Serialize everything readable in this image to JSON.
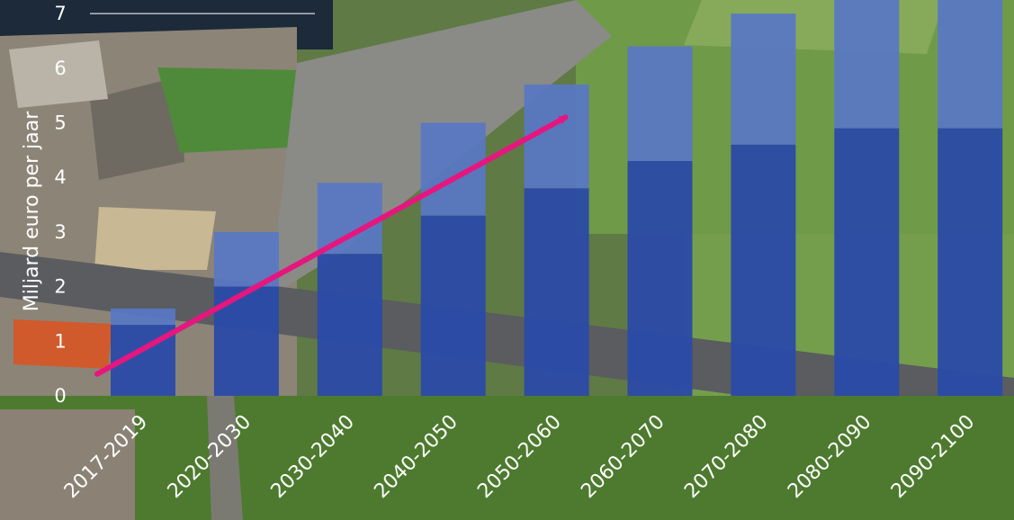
{
  "chart_data": {
    "type": "bar",
    "ylabel": "Miljard euro per jaar",
    "ylim": [
      0,
      7
    ],
    "yticks": [
      0,
      1,
      2,
      3,
      4,
      5,
      6,
      7
    ],
    "categories": [
      "2017-2019",
      "2020-2030",
      "2030-2040",
      "2040-2050",
      "2050-2060",
      "2060-2070",
      "2070-2080",
      "2080-2090",
      "2090-2100"
    ],
    "series": [
      {
        "values": [
          1.3,
          2.0,
          2.6,
          3.3,
          3.8,
          4.3,
          4.6,
          4.9,
          4.9
        ]
      },
      {
        "values": [
          0.3,
          1.0,
          1.3,
          1.7,
          1.9,
          2.1,
          2.4,
          2.4,
          2.4
        ]
      }
    ],
    "trend_arrow": {
      "from": [
        "2017-2019",
        0.4
      ],
      "to": [
        "2050-2060",
        5.1
      ]
    },
    "colors": {
      "lower": "#2a4aa8",
      "upper": "#5877c6",
      "arrow": "#e6167f",
      "grid": "#ffffff"
    },
    "grid": false,
    "legend": "none"
  }
}
